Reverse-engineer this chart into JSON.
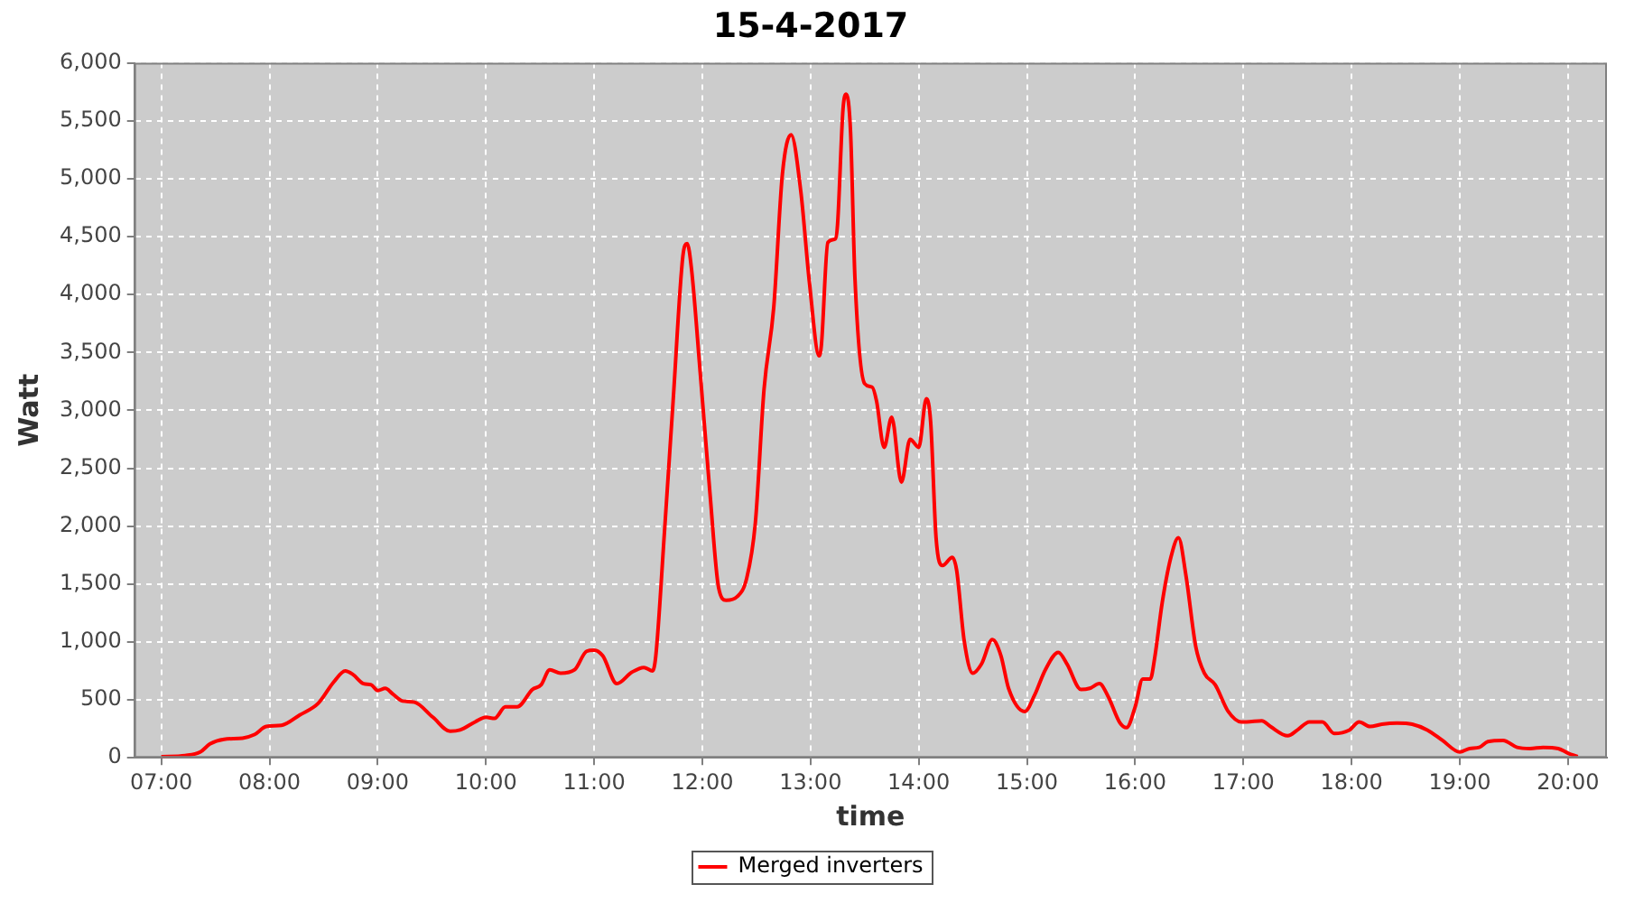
{
  "chart_data": {
    "type": "line",
    "title": "15-4-2017",
    "xlabel": "time",
    "ylabel": "Watt",
    "xlim": [
      6.75,
      20.36
    ],
    "xticks": [
      {
        "value": 7,
        "label": "07:00"
      },
      {
        "value": 8,
        "label": "08:00"
      },
      {
        "value": 9,
        "label": "09:00"
      },
      {
        "value": 10,
        "label": "10:00"
      },
      {
        "value": 11,
        "label": "11:00"
      },
      {
        "value": 12,
        "label": "12:00"
      },
      {
        "value": 13,
        "label": "13:00"
      },
      {
        "value": 14,
        "label": "14:00"
      },
      {
        "value": 15,
        "label": "15:00"
      },
      {
        "value": 16,
        "label": "16:00"
      },
      {
        "value": 17,
        "label": "17:00"
      },
      {
        "value": 18,
        "label": "18:00"
      },
      {
        "value": 19,
        "label": "19:00"
      },
      {
        "value": 20,
        "label": "20:00"
      }
    ],
    "ylim": [
      0,
      6000
    ],
    "yticks": [
      0,
      500,
      {
        "value": 1000,
        "label": "1,000"
      },
      {
        "value": 1500,
        "label": "1,500"
      },
      {
        "value": 2000,
        "label": "2,000"
      },
      {
        "value": 2500,
        "label": "2,500"
      },
      {
        "value": 3000,
        "label": "3,000"
      },
      {
        "value": 3500,
        "label": "3,500"
      },
      {
        "value": 4000,
        "label": "4,000"
      },
      {
        "value": 4500,
        "label": "4,500"
      },
      {
        "value": 5000,
        "label": "5,000"
      },
      {
        "value": 5500,
        "label": "5,500"
      },
      {
        "value": 6000,
        "label": "6,000"
      }
    ],
    "grid": true,
    "legend": "bottom",
    "line_style": "solid",
    "series": [
      {
        "name": "Merged inverters",
        "color": "#ff0000",
        "x": [
          7.0,
          7.22,
          7.36,
          7.45,
          7.58,
          7.75,
          7.86,
          7.97,
          8.11,
          8.28,
          8.45,
          8.59,
          8.7,
          8.77,
          8.87,
          8.94,
          9.0,
          9.07,
          9.14,
          9.23,
          9.34,
          9.51,
          9.67,
          9.76,
          9.9,
          10.0,
          10.08,
          10.18,
          10.29,
          10.43,
          10.51,
          10.59,
          10.69,
          10.82,
          10.93,
          11.0,
          11.08,
          11.21,
          11.35,
          11.46,
          11.54,
          11.57,
          11.65,
          11.73,
          11.82,
          11.86,
          11.9,
          11.98,
          12.07,
          12.15,
          12.22,
          12.32,
          12.41,
          12.49,
          12.57,
          12.66,
          12.74,
          12.82,
          12.91,
          12.99,
          13.08,
          13.1,
          13.16,
          13.23,
          13.25,
          13.3,
          13.33,
          13.37,
          13.41,
          13.5,
          13.57,
          13.61,
          13.68,
          13.75,
          13.84,
          13.92,
          14.0,
          14.07,
          14.11,
          14.16,
          14.22,
          14.31,
          14.35,
          14.42,
          14.5,
          14.58,
          14.68,
          14.76,
          14.83,
          14.98,
          15.07,
          15.17,
          15.29,
          15.37,
          15.5,
          15.58,
          15.67,
          15.75,
          15.86,
          15.92,
          16.0,
          16.07,
          16.14,
          16.18,
          16.25,
          16.33,
          16.4,
          16.47,
          16.56,
          16.64,
          16.74,
          16.86,
          16.98,
          17.03,
          17.17,
          17.25,
          17.41,
          17.5,
          17.61,
          17.73,
          17.84,
          17.98,
          18.07,
          18.17,
          18.28,
          18.42,
          18.56,
          18.7,
          18.84,
          19.0,
          19.09,
          19.18,
          19.26,
          19.4,
          19.53,
          19.65,
          19.77,
          19.91,
          20.0,
          20.09
        ],
        "values": [
          10,
          20,
          50,
          120,
          160,
          170,
          200,
          270,
          280,
          370,
          470,
          650,
          750,
          720,
          640,
          630,
          580,
          600,
          550,
          490,
          480,
          350,
          230,
          240,
          310,
          350,
          340,
          440,
          440,
          590,
          630,
          760,
          730,
          760,
          920,
          930,
          880,
          640,
          740,
          780,
          750,
          880,
          1950,
          3080,
          4330,
          4440,
          4220,
          3330,
          2290,
          1470,
          1360,
          1390,
          1550,
          2030,
          3180,
          3890,
          5040,
          5380,
          4890,
          4100,
          3470,
          3560,
          4450,
          4480,
          4610,
          5600,
          5730,
          5400,
          4150,
          3230,
          3200,
          3080,
          2680,
          2940,
          2380,
          2750,
          2680,
          3100,
          2900,
          1900,
          1660,
          1730,
          1620,
          1010,
          730,
          810,
          1020,
          880,
          600,
          400,
          540,
          760,
          910,
          810,
          590,
          600,
          640,
          530,
          300,
          260,
          440,
          680,
          680,
          860,
          1340,
          1730,
          1900,
          1570,
          960,
          730,
          630,
          400,
          310,
          310,
          320,
          270,
          190,
          240,
          310,
          310,
          210,
          240,
          310,
          270,
          290,
          300,
          290,
          240,
          150,
          50,
          80,
          90,
          140,
          150,
          90,
          80,
          90,
          80,
          40,
          10
        ]
      }
    ]
  }
}
